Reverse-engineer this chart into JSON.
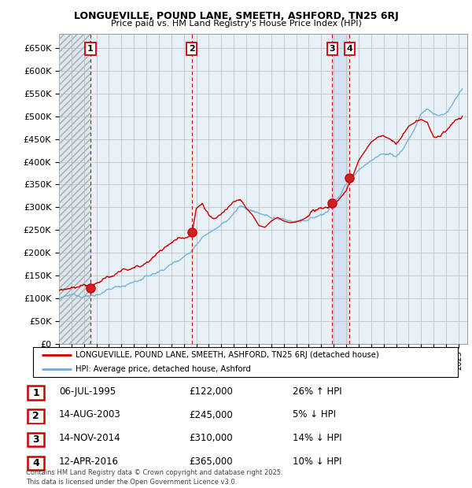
{
  "title1": "LONGUEVILLE, POUND LANE, SMEETH, ASHFORD, TN25 6RJ",
  "title2": "Price paid vs. HM Land Registry's House Price Index (HPI)",
  "ylim": [
    0,
    680000
  ],
  "yticks": [
    0,
    50000,
    100000,
    150000,
    200000,
    250000,
    300000,
    350000,
    400000,
    450000,
    500000,
    550000,
    600000,
    650000
  ],
  "ytick_labels": [
    "£0",
    "£50K",
    "£100K",
    "£150K",
    "£200K",
    "£250K",
    "£300K",
    "£350K",
    "£400K",
    "£450K",
    "£500K",
    "£550K",
    "£600K",
    "£650K"
  ],
  "xlim_start": 1993.0,
  "xlim_end": 2025.7,
  "sale_color": "#cc0000",
  "hpi_color": "#6baed6",
  "hpi_fill_color": "#c6dbef",
  "legend_label_sale": "LONGUEVILLE, POUND LANE, SMEETH, ASHFORD, TN25 6RJ (detached house)",
  "legend_label_hpi": "HPI: Average price, detached house, Ashford",
  "transactions": [
    {
      "num": 1,
      "date_label": "06-JUL-1995",
      "date_x": 1995.52,
      "price": 122000,
      "price_label": "£122,000",
      "hpi_rel": "26% ↑ HPI"
    },
    {
      "num": 2,
      "date_label": "14-AUG-2003",
      "date_x": 2003.62,
      "price": 245000,
      "price_label": "£245,000",
      "hpi_rel": "5% ↓ HPI"
    },
    {
      "num": 3,
      "date_label": "14-NOV-2014",
      "date_x": 2014.87,
      "price": 310000,
      "price_label": "£310,000",
      "hpi_rel": "14% ↓ HPI"
    },
    {
      "num": 4,
      "date_label": "12-APR-2016",
      "date_x": 2016.28,
      "price": 365000,
      "price_label": "£365,000",
      "hpi_rel": "10% ↓ HPI"
    }
  ],
  "footer": "Contains HM Land Registry data © Crown copyright and database right 2025.\nThis data is licensed under the Open Government Licence v3.0.",
  "bg_color": "#ffffff",
  "grid_color": "#bbbbbb"
}
